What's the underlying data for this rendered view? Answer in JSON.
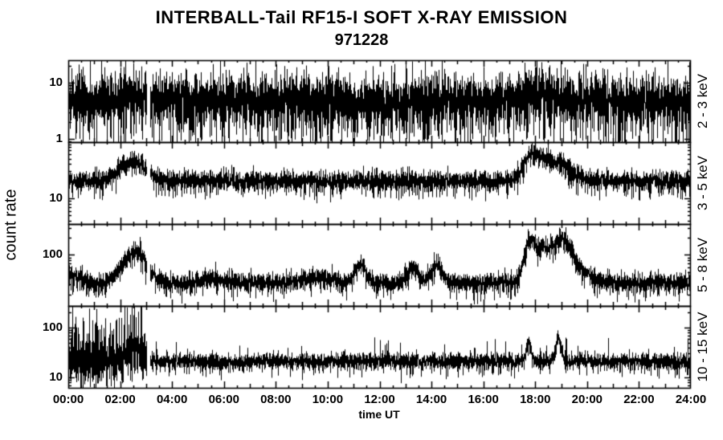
{
  "chart_data": {
    "type": "line",
    "title": "INTERBALL-Tail RF15-I SOFT X-RAY EMISSION",
    "subtitle": "971228",
    "xlabel": "time UT",
    "ylabel": "count rate",
    "background": "#ffffff",
    "axis_color": "#000000",
    "grid": false,
    "x_hours_range": [
      0,
      24
    ],
    "x_tick_step_hours": 2,
    "x_minor_tick_hours": 0.5,
    "x_tick_labels": [
      "00:00",
      "02:00",
      "04:00",
      "06:00",
      "08:00",
      "10:00",
      "12:00",
      "14:00",
      "16:00",
      "18:00",
      "20:00",
      "22:00",
      "24:00"
    ],
    "panels": [
      {
        "band": "2 - 3 keV",
        "scale": "log",
        "ylim": [
          0.88,
          25
        ],
        "yticks": [
          1,
          10
        ],
        "baseline": 4.8,
        "noise_dex": 0.2,
        "samples_per_column": 7,
        "down_spike_prob": 0.5,
        "down_spike_dex": 0.6,
        "up_spike_prob": 0.25,
        "up_spike_dex": 0.28,
        "bumps": [
          {
            "t": 2.35,
            "w": 0.45,
            "amp": 0.12
          },
          {
            "t": 17.8,
            "w": 0.4,
            "amp": 0.16
          },
          {
            "t": 18.9,
            "w": 0.3,
            "amp": 0.07
          }
        ],
        "gaps": [
          [
            3.04,
            3.16
          ]
        ]
      },
      {
        "band": "3 - 5 keV",
        "scale": "log",
        "ylim": [
          3.5,
          98
        ],
        "yticks": [
          10
        ],
        "baseline": 20,
        "noise_dex": 0.08,
        "samples_per_column": 7,
        "down_spike_prob": 0.35,
        "down_spike_dex": 0.22,
        "up_spike_prob": 0.2,
        "up_spike_dex": 0.12,
        "bumps": [
          {
            "t": 2.5,
            "w": 0.5,
            "amp": 0.33
          },
          {
            "t": 17.75,
            "w": 0.28,
            "amp": 0.36
          },
          {
            "t": 18.25,
            "w": 0.32,
            "amp": 0.28
          },
          {
            "t": 19.0,
            "w": 0.45,
            "amp": 0.3
          }
        ],
        "gaps": [
          [
            3.04,
            3.16
          ]
        ]
      },
      {
        "band": "5 - 8 keV",
        "scale": "log",
        "ylim": [
          12.6,
          349
        ],
        "yticks": [
          100
        ],
        "baseline": 32,
        "noise_dex": 0.075,
        "samples_per_column": 7,
        "down_spike_prob": 0.35,
        "down_spike_dex": 0.22,
        "up_spike_prob": 0.15,
        "up_spike_dex": 0.12,
        "bumps": [
          {
            "t": 0.0,
            "w": 0.5,
            "amp": 0.15
          },
          {
            "t": 2.55,
            "w": 0.45,
            "amp": 0.56
          },
          {
            "t": 5.5,
            "w": 0.4,
            "amp": 0.07
          },
          {
            "t": 9.6,
            "w": 0.5,
            "amp": 0.1
          },
          {
            "t": 11.25,
            "w": 0.2,
            "amp": 0.33
          },
          {
            "t": 13.3,
            "w": 0.2,
            "amp": 0.28
          },
          {
            "t": 14.2,
            "w": 0.22,
            "amp": 0.3
          },
          {
            "t": 17.78,
            "w": 0.22,
            "amp": 0.7
          },
          {
            "t": 18.35,
            "w": 0.28,
            "amp": 0.55
          },
          {
            "t": 19.05,
            "w": 0.32,
            "amp": 0.64
          },
          {
            "t": 19.6,
            "w": 0.5,
            "amp": 0.22
          }
        ],
        "gaps": [
          [
            3.04,
            3.16
          ]
        ]
      },
      {
        "band": "10 - 15 keV",
        "scale": "log",
        "ylim": [
          6.2,
          272
        ],
        "yticks": [
          10,
          100
        ],
        "baseline": 21,
        "noise_dex": 0.075,
        "samples_per_column": 7,
        "down_spike_prob": 0.3,
        "down_spike_dex": 0.22,
        "up_spike_prob": 0.05,
        "up_spike_dex": 0.4,
        "bumps": [
          {
            "t": 2.55,
            "w": 0.35,
            "amp": 0.2
          },
          {
            "t": 17.75,
            "w": 0.09,
            "amp": 0.42
          },
          {
            "t": 18.9,
            "w": 0.11,
            "amp": 0.45
          }
        ],
        "burst": {
          "end": 3.04,
          "extra_noise_dex": 0.13,
          "spike_prob": 0.5,
          "spike_dex": 0.85
        },
        "gaps": [
          [
            3.04,
            3.16
          ]
        ]
      }
    ]
  }
}
